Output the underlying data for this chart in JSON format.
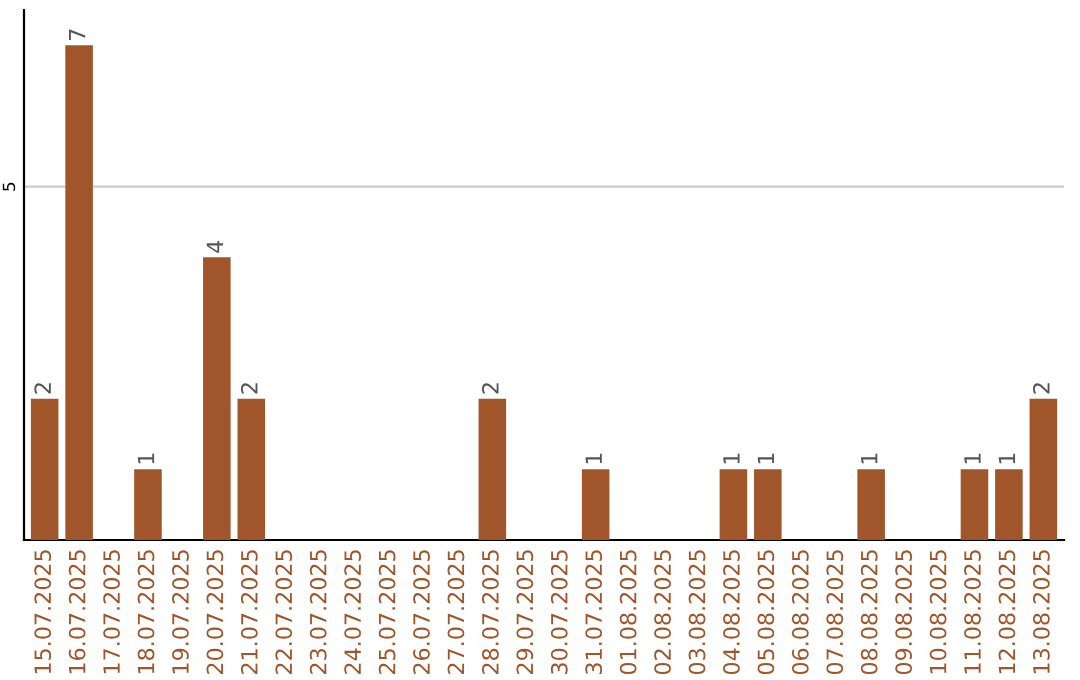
{
  "chart_data": {
    "type": "bar",
    "categories": [
      "15.07.2025",
      "16.07.2025",
      "17.07.2025",
      "18.07.2025",
      "19.07.2025",
      "20.07.2025",
      "21.07.2025",
      "22.07.2025",
      "23.07.2025",
      "24.07.2025",
      "25.07.2025",
      "26.07.2025",
      "27.07.2025",
      "28.07.2025",
      "29.07.2025",
      "30.07.2025",
      "31.07.2025",
      "01.08.2025",
      "02.08.2025",
      "03.08.2025",
      "04.08.2025",
      "05.08.2025",
      "06.08.2025",
      "07.08.2025",
      "08.08.2025",
      "09.08.2025",
      "10.08.2025",
      "11.08.2025",
      "12.08.2025",
      "13.08.2025"
    ],
    "values": [
      2,
      7,
      0,
      1,
      0,
      4,
      2,
      0,
      0,
      0,
      0,
      0,
      0,
      2,
      0,
      0,
      1,
      0,
      0,
      0,
      1,
      1,
      0,
      0,
      1,
      0,
      0,
      1,
      1,
      2
    ],
    "value_labels": [
      "2",
      "7",
      null,
      "1",
      null,
      "4",
      "2",
      null,
      null,
      null,
      null,
      null,
      null,
      "2",
      null,
      null,
      "1",
      null,
      null,
      null,
      "1",
      "1",
      null,
      null,
      "1",
      null,
      null,
      "1",
      "1",
      "2"
    ],
    "color": "#a0562a",
    "ylim": [
      0,
      7.5
    ],
    "yticks": [
      5
    ],
    "grid": "y"
  }
}
